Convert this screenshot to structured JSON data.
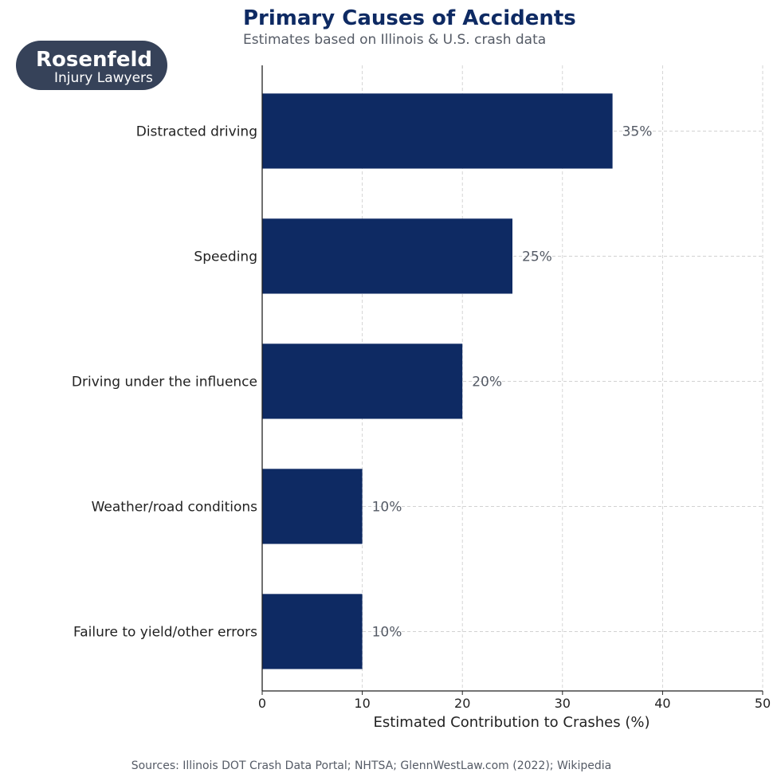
{
  "title": "Primary Causes of Accidents",
  "subtitle": "Estimates based on Illinois & U.S. crash data",
  "source": "Sources: Illinois DOT Crash Data Portal; NHTSA; GlennWestLaw.com (2022); Wikipedia",
  "logo": {
    "name": "Rosenfeld",
    "tagline": "Injury Lawyers",
    "background": "#364259"
  },
  "colors": {
    "bar": "#0e2a63",
    "title": "#0e2a63",
    "grid": "#cccccc",
    "label": "#555b66"
  },
  "chart_data": {
    "type": "bar",
    "orientation": "horizontal",
    "categories": [
      "Distracted driving",
      "Speeding",
      "Driving under the influence",
      "Weather/road conditions",
      "Failure to yield/other errors"
    ],
    "values": [
      35,
      25,
      20,
      10,
      10
    ],
    "data_labels": [
      "35%",
      "25%",
      "20%",
      "10%",
      "10%"
    ],
    "xlabel": "Estimated Contribution to Crashes (%)",
    "ylabel": "",
    "xlim": [
      0,
      50
    ],
    "xticks": [
      0,
      10,
      20,
      30,
      40,
      50
    ],
    "grid": true
  }
}
